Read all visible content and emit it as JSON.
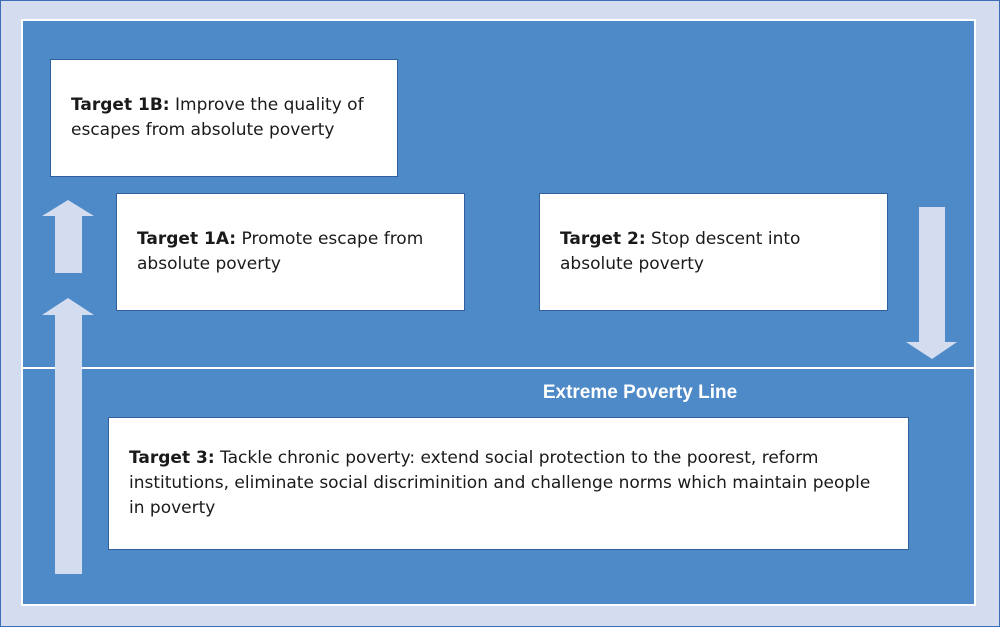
{
  "diagram": {
    "extreme_poverty_line_label": "Extreme Poverty Line",
    "targets": {
      "t1b": {
        "label": "Target 1B:",
        "text": "Improve the quality of escapes from absolute poverty"
      },
      "t1a": {
        "label": "Target 1A:",
        "text": "Promote escape from absolute poverty"
      },
      "t2": {
        "label": "Target 2:",
        "text": "Stop descent into absolute poverty"
      },
      "t3": {
        "label": "Target 3:",
        "text": "Tackle chronic poverty: extend social protection to the poorest, reform institutions, eliminate social discriminition and challenge norms which maintain people in poverty"
      }
    },
    "colors": {
      "background": "#4e89c8",
      "frame": "#d3ddef",
      "arrow": "#d3ddef",
      "box": "#ffffff"
    }
  }
}
